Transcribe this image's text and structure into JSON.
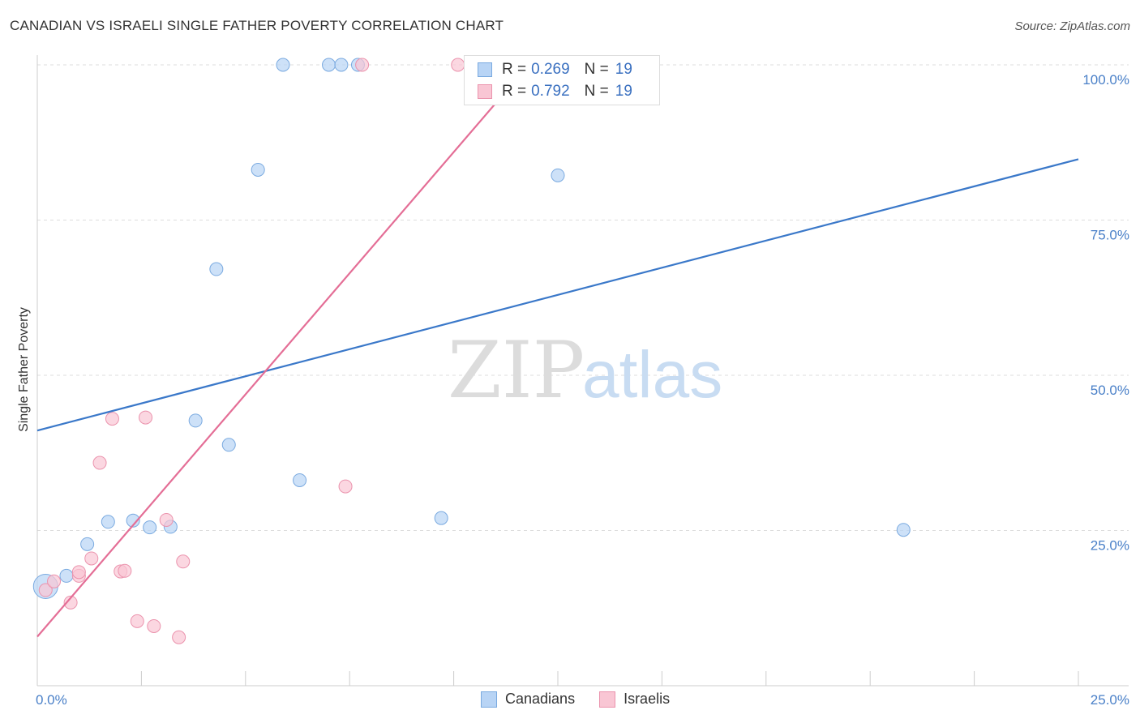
{
  "title": "CANADIAN VS ISRAELI SINGLE FATHER POVERTY CORRELATION CHART",
  "source": "Source: ZipAtlas.com",
  "watermark": {
    "zip": "ZIP",
    "atlas": "atlas"
  },
  "colors": {
    "canadians_fill": "#b8d4f5",
    "canadians_stroke": "#7aaae0",
    "canadians_line": "#3a78c9",
    "israelis_fill": "#f9c6d4",
    "israelis_stroke": "#eb93ad",
    "israelis_line": "#e46e96",
    "tick_text": "#4a80c8",
    "grid": "#dddddd"
  },
  "legend_top": [
    {
      "label": "R =",
      "r": "0.269",
      "n_label": "N =",
      "n": "19",
      "series": "canadians"
    },
    {
      "label": "R =",
      "r": "0.792",
      "n_label": "N =",
      "n": "19",
      "series": "israelis"
    }
  ],
  "legend_bottom": [
    {
      "name": "Canadians",
      "series": "canadians"
    },
    {
      "name": "Israelis",
      "series": "israelis"
    }
  ],
  "chart_data": {
    "type": "scatter",
    "title": "CANADIAN VS ISRAELI SINGLE FATHER POVERTY CORRELATION CHART",
    "xlabel": "",
    "ylabel": "Single Father Poverty",
    "xlim": [
      0,
      25
    ],
    "ylim": [
      0,
      100
    ],
    "x_tick_labels": [
      "0.0%",
      "25.0%"
    ],
    "y_ticks": [
      25,
      50,
      75,
      100
    ],
    "y_tick_labels": [
      "25.0%",
      "50.0%",
      "75.0%",
      "100.0%"
    ],
    "grid": true,
    "legend_position": "top-center",
    "series": [
      {
        "name": "Canadians",
        "r": 0.269,
        "n": 19,
        "trend_line": {
          "x": [
            0,
            25
          ],
          "y": [
            41.1,
            84.8
          ]
        },
        "points": [
          {
            "x": 0.2,
            "y": 16.0,
            "large": true
          },
          {
            "x": 0.7,
            "y": 17.7
          },
          {
            "x": 1.2,
            "y": 22.8
          },
          {
            "x": 1.7,
            "y": 26.4
          },
          {
            "x": 2.3,
            "y": 26.6
          },
          {
            "x": 2.7,
            "y": 25.5
          },
          {
            "x": 3.2,
            "y": 25.6
          },
          {
            "x": 3.8,
            "y": 42.7
          },
          {
            "x": 4.3,
            "y": 67.1
          },
          {
            "x": 4.6,
            "y": 38.8
          },
          {
            "x": 5.3,
            "y": 83.1
          },
          {
            "x": 5.9,
            "y": 100.0
          },
          {
            "x": 6.3,
            "y": 33.1
          },
          {
            "x": 7.0,
            "y": 100.0
          },
          {
            "x": 7.3,
            "y": 100.0
          },
          {
            "x": 7.7,
            "y": 100.0
          },
          {
            "x": 9.7,
            "y": 27.0
          },
          {
            "x": 12.5,
            "y": 82.2
          },
          {
            "x": 20.8,
            "y": 25.1
          }
        ]
      },
      {
        "name": "Israelis",
        "r": 0.792,
        "n": 19,
        "trend_line": {
          "x": [
            0,
            11.8
          ],
          "y": [
            7.9,
            100
          ]
        },
        "points": [
          {
            "x": 0.2,
            "y": 15.4
          },
          {
            "x": 0.4,
            "y": 16.8
          },
          {
            "x": 0.8,
            "y": 13.4
          },
          {
            "x": 1.0,
            "y": 17.7
          },
          {
            "x": 1.0,
            "y": 18.3
          },
          {
            "x": 1.3,
            "y": 20.5
          },
          {
            "x": 1.5,
            "y": 35.9
          },
          {
            "x": 1.8,
            "y": 43.0
          },
          {
            "x": 2.0,
            "y": 18.4
          },
          {
            "x": 2.1,
            "y": 18.5
          },
          {
            "x": 2.4,
            "y": 10.4
          },
          {
            "x": 2.6,
            "y": 43.2
          },
          {
            "x": 2.8,
            "y": 9.6
          },
          {
            "x": 3.1,
            "y": 26.7
          },
          {
            "x": 3.4,
            "y": 7.8
          },
          {
            "x": 3.5,
            "y": 20.0
          },
          {
            "x": 7.4,
            "y": 32.1
          },
          {
            "x": 7.8,
            "y": 100.0
          },
          {
            "x": 10.1,
            "y": 100.0
          }
        ]
      }
    ]
  }
}
